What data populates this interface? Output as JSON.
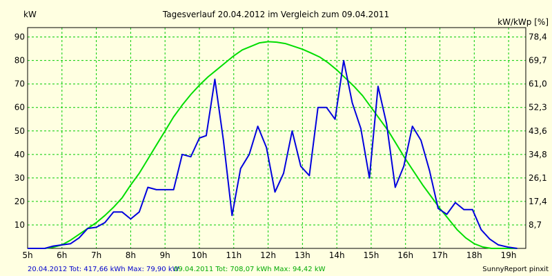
{
  "chart_data": {
    "type": "line",
    "title": "Tagesverlauf 20.04.2012 im Vergleich zum 09.04.2011",
    "ylabel_left": "kW",
    "ylabel_right": "kW/kWp [%]",
    "xlim": [
      5,
      19.5
    ],
    "ylim": [
      0,
      94
    ],
    "x_ticks": [
      {
        "value": 5,
        "label": "5h"
      },
      {
        "value": 6,
        "label": "6h"
      },
      {
        "value": 7,
        "label": "7h"
      },
      {
        "value": 8,
        "label": "8h"
      },
      {
        "value": 9,
        "label": "9h"
      },
      {
        "value": 10,
        "label": "10h"
      },
      {
        "value": 11,
        "label": "11h"
      },
      {
        "value": 12,
        "label": "12h"
      },
      {
        "value": 13,
        "label": "13h"
      },
      {
        "value": 14,
        "label": "14h"
      },
      {
        "value": 15,
        "label": "15h"
      },
      {
        "value": 16,
        "label": "16h"
      },
      {
        "value": 17,
        "label": "17h"
      },
      {
        "value": 18,
        "label": "18h"
      },
      {
        "value": 19,
        "label": "19h"
      }
    ],
    "y_ticks_left": [
      10,
      20,
      30,
      40,
      50,
      60,
      70,
      80,
      90
    ],
    "y_ticks_right": [
      {
        "value": 10,
        "label": "8,7"
      },
      {
        "value": 20,
        "label": "17,4"
      },
      {
        "value": 30,
        "label": "26,1"
      },
      {
        "value": 40,
        "label": "34,8"
      },
      {
        "value": 50,
        "label": "43,6"
      },
      {
        "value": 60,
        "label": "52,3"
      },
      {
        "value": 70,
        "label": "61,0"
      },
      {
        "value": 80,
        "label": "69,7"
      },
      {
        "value": 90,
        "label": "78,4"
      }
    ],
    "grid": true,
    "series": [
      {
        "color": "#00dd00",
        "x": [
          5.0,
          5.5,
          5.75,
          6.0,
          6.25,
          6.5,
          6.75,
          7.0,
          7.25,
          7.5,
          7.75,
          8.0,
          8.25,
          8.5,
          8.75,
          9.0,
          9.25,
          9.5,
          9.75,
          10.0,
          10.25,
          10.5,
          10.75,
          11.0,
          11.25,
          11.5,
          11.75,
          12.0,
          12.25,
          12.5,
          12.75,
          13.0,
          13.25,
          13.5,
          13.75,
          14.0,
          14.25,
          14.5,
          14.75,
          15.0,
          15.25,
          15.5,
          15.75,
          16.0,
          16.25,
          16.5,
          16.75,
          17.0,
          17.25,
          17.5,
          17.75,
          18.0,
          18.25,
          18.5,
          18.75,
          19.0,
          19.25
        ],
        "values": [
          0,
          0,
          0.5,
          1.5,
          3.5,
          6,
          8.5,
          11,
          14,
          17.5,
          21.5,
          27,
          32,
          38,
          44,
          50,
          56,
          61,
          65.5,
          69.5,
          73,
          76,
          79,
          82,
          84.5,
          86,
          87.5,
          88,
          87.8,
          87.2,
          86,
          84.8,
          83.2,
          81.5,
          79,
          76,
          72.5,
          69,
          65,
          60,
          55,
          50,
          44,
          38,
          32.5,
          27,
          22,
          17,
          12.5,
          8,
          4.5,
          2,
          0.6,
          0,
          0,
          0,
          0
        ]
      },
      {
        "color": "#0000dd",
        "x": [
          5.0,
          5.5,
          5.75,
          6.0,
          6.25,
          6.5,
          6.75,
          7.0,
          7.25,
          7.5,
          7.75,
          8.0,
          8.25,
          8.5,
          8.75,
          9.0,
          9.25,
          9.5,
          9.75,
          10.0,
          10.2,
          10.45,
          10.7,
          10.95,
          11.2,
          11.45,
          11.7,
          11.95,
          12.2,
          12.45,
          12.7,
          12.95,
          13.2,
          13.45,
          13.7,
          13.95,
          14.2,
          14.45,
          14.7,
          14.95,
          15.2,
          15.45,
          15.7,
          15.95,
          16.2,
          16.45,
          16.7,
          16.95,
          17.2,
          17.45,
          17.7,
          17.95,
          18.2,
          18.45,
          18.7,
          19.0,
          19.25
        ],
        "values": [
          0,
          0,
          1,
          1.5,
          2,
          4.5,
          8.5,
          9,
          11,
          15.5,
          15.5,
          12.5,
          15.5,
          26,
          25,
          25,
          25,
          40,
          39,
          47,
          48,
          72,
          46,
          14,
          34,
          40,
          52,
          43,
          24,
          32,
          50,
          35,
          31,
          60,
          60,
          55,
          80,
          62,
          51,
          30,
          69,
          53,
          26,
          35,
          52,
          46,
          33,
          17,
          14.5,
          19.5,
          16.5,
          16.5,
          8,
          4,
          1.5,
          0.5,
          0
        ]
      }
    ]
  },
  "footer": {
    "blue_text": "20.04.2012 Tot: 417,66 kWh Max: 79,90 kW",
    "green_text": "09.04.2011 Tot: 708,07 kWh Max: 94,42 kW",
    "brand": "SunnyReport pinxit"
  }
}
